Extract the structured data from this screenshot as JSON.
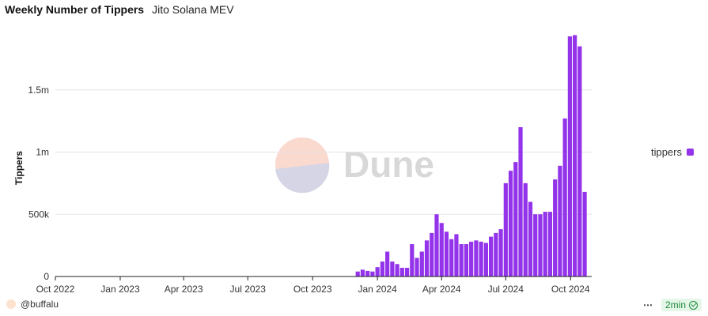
{
  "header": {
    "title": "Weekly Number of Tippers",
    "subtitle": "Jito Solana MEV"
  },
  "watermark": {
    "text": "Dune"
  },
  "footer": {
    "author": "@buffalu",
    "refresh": "2min",
    "more_menu": "⋯"
  },
  "colors": {
    "bar": "#9333ea",
    "grid": "#e5e5e5",
    "axis": "#222222",
    "watermark_top": "#fad9cf",
    "watermark_bottom": "#d6d5e6",
    "watermark_text": "#d8d8d8"
  },
  "chart_data": {
    "type": "bar",
    "ylabel": "Tippers",
    "xlabel": "",
    "ylim": [
      0,
      2000000
    ],
    "yticks": [
      {
        "value": 0,
        "label": "0"
      },
      {
        "value": 500000,
        "label": "500k"
      },
      {
        "value": 1000000,
        "label": "1m"
      },
      {
        "value": 1500000,
        "label": "1.5m"
      }
    ],
    "xrange": [
      "2022-10-01",
      "2024-10-31"
    ],
    "xticks": [
      {
        "date": "2022-10-01",
        "label": "Oct 2022"
      },
      {
        "date": "2023-01-01",
        "label": "Jan 2023"
      },
      {
        "date": "2023-04-01",
        "label": "Apr 2023"
      },
      {
        "date": "2023-07-01",
        "label": "Jul 2023"
      },
      {
        "date": "2023-10-01",
        "label": "Oct 2023"
      },
      {
        "date": "2024-01-01",
        "label": "Jan 2024"
      },
      {
        "date": "2024-04-01",
        "label": "Apr 2024"
      },
      {
        "date": "2024-07-01",
        "label": "Jul 2024"
      },
      {
        "date": "2024-10-01",
        "label": "Oct 2024"
      }
    ],
    "legend": {
      "position": "right",
      "entries": [
        "tippers"
      ]
    },
    "grid": true,
    "series": [
      {
        "name": "tippers",
        "x": [
          "2023-12-04",
          "2023-12-11",
          "2023-12-18",
          "2023-12-25",
          "2024-01-01",
          "2024-01-08",
          "2024-01-15",
          "2024-01-22",
          "2024-01-29",
          "2024-02-05",
          "2024-02-12",
          "2024-02-19",
          "2024-02-26",
          "2024-03-04",
          "2024-03-11",
          "2024-03-18",
          "2024-03-25",
          "2024-04-01",
          "2024-04-08",
          "2024-04-15",
          "2024-04-22",
          "2024-04-29",
          "2024-05-06",
          "2024-05-13",
          "2024-05-20",
          "2024-05-27",
          "2024-06-03",
          "2024-06-10",
          "2024-06-17",
          "2024-06-24",
          "2024-07-01",
          "2024-07-08",
          "2024-07-15",
          "2024-07-22",
          "2024-07-29",
          "2024-08-05",
          "2024-08-12",
          "2024-08-19",
          "2024-08-26",
          "2024-09-02",
          "2024-09-09",
          "2024-09-16",
          "2024-09-23",
          "2024-09-30",
          "2024-10-07",
          "2024-10-14",
          "2024-10-21"
        ],
        "values": [
          40000,
          55000,
          45000,
          40000,
          75000,
          120000,
          200000,
          120000,
          100000,
          70000,
          70000,
          260000,
          150000,
          200000,
          290000,
          350000,
          500000,
          430000,
          360000,
          300000,
          340000,
          260000,
          260000,
          280000,
          290000,
          280000,
          270000,
          320000,
          350000,
          380000,
          750000,
          850000,
          920000,
          1200000,
          750000,
          600000,
          500000,
          500000,
          520000,
          520000,
          780000,
          890000,
          1270000,
          1930000,
          1940000,
          1850000,
          680000
        ]
      }
    ]
  }
}
